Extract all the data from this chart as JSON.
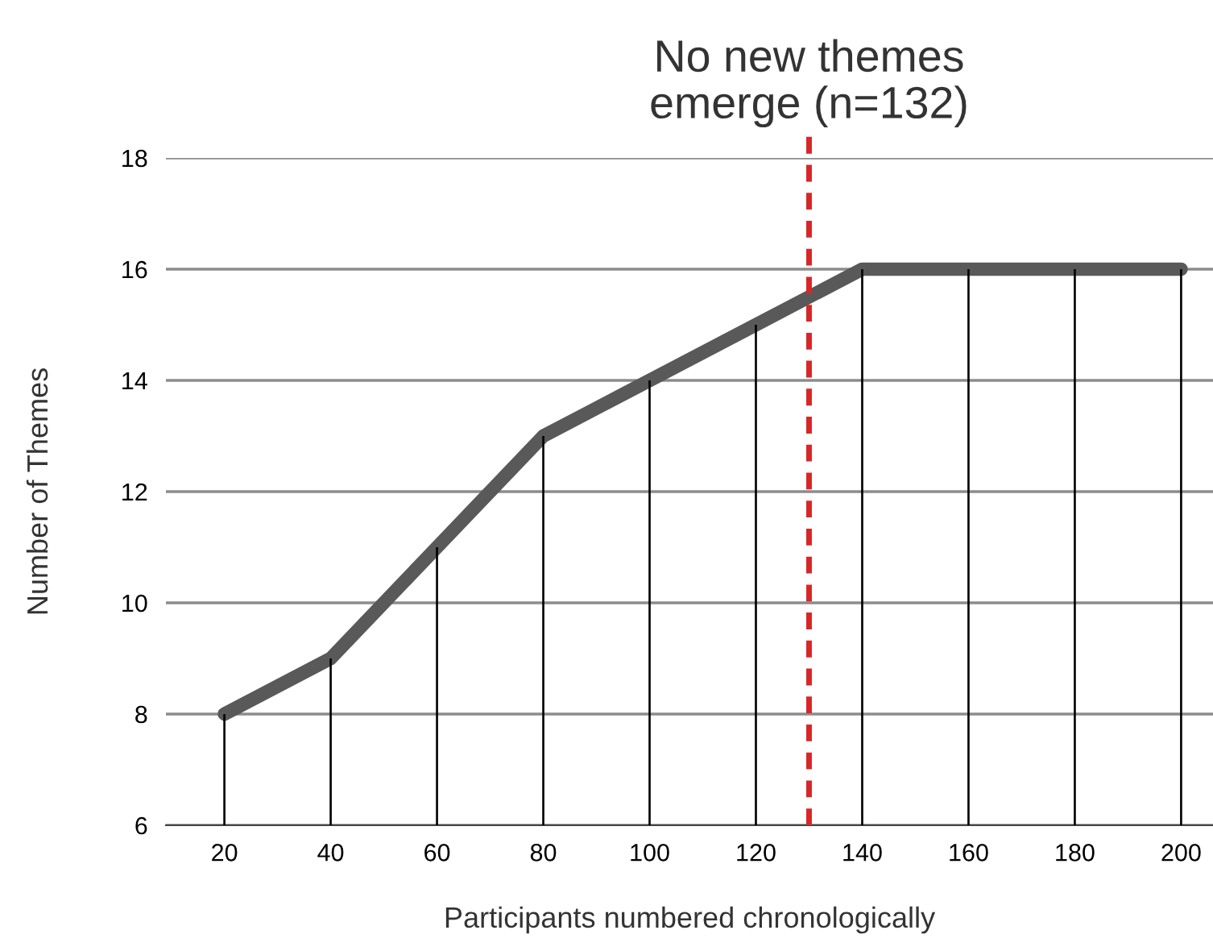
{
  "chart_data": {
    "type": "line",
    "xlabel": "Participants numbered chronologically",
    "ylabel": "Number of Themes",
    "x": [
      20,
      40,
      60,
      80,
      100,
      120,
      140,
      160,
      180,
      200
    ],
    "series": [
      {
        "type": "bar",
        "color": "#000000",
        "values": [
          8,
          9,
          11,
          13,
          14,
          15,
          16,
          16,
          16,
          16
        ]
      },
      {
        "color": "#595959",
        "values": [
          8,
          9,
          11,
          13,
          14,
          15,
          16,
          16,
          16,
          16
        ]
      }
    ],
    "xlim": [
      9,
      206
    ],
    "xticks": [
      20,
      40,
      60,
      80,
      100,
      120,
      140,
      160,
      180,
      200
    ],
    "ylim": [
      6,
      18
    ],
    "yticks": [
      6,
      8,
      10,
      12,
      14,
      16,
      18
    ],
    "grid": "y",
    "marker": "none",
    "line_style": "solid",
    "annotations": [
      "No new themes\nemerge (n=132)"
    ],
    "ref_lines": [
      {
        "axis": "x",
        "value": 130,
        "color": "#d62728",
        "line_style": "dashed"
      }
    ]
  }
}
